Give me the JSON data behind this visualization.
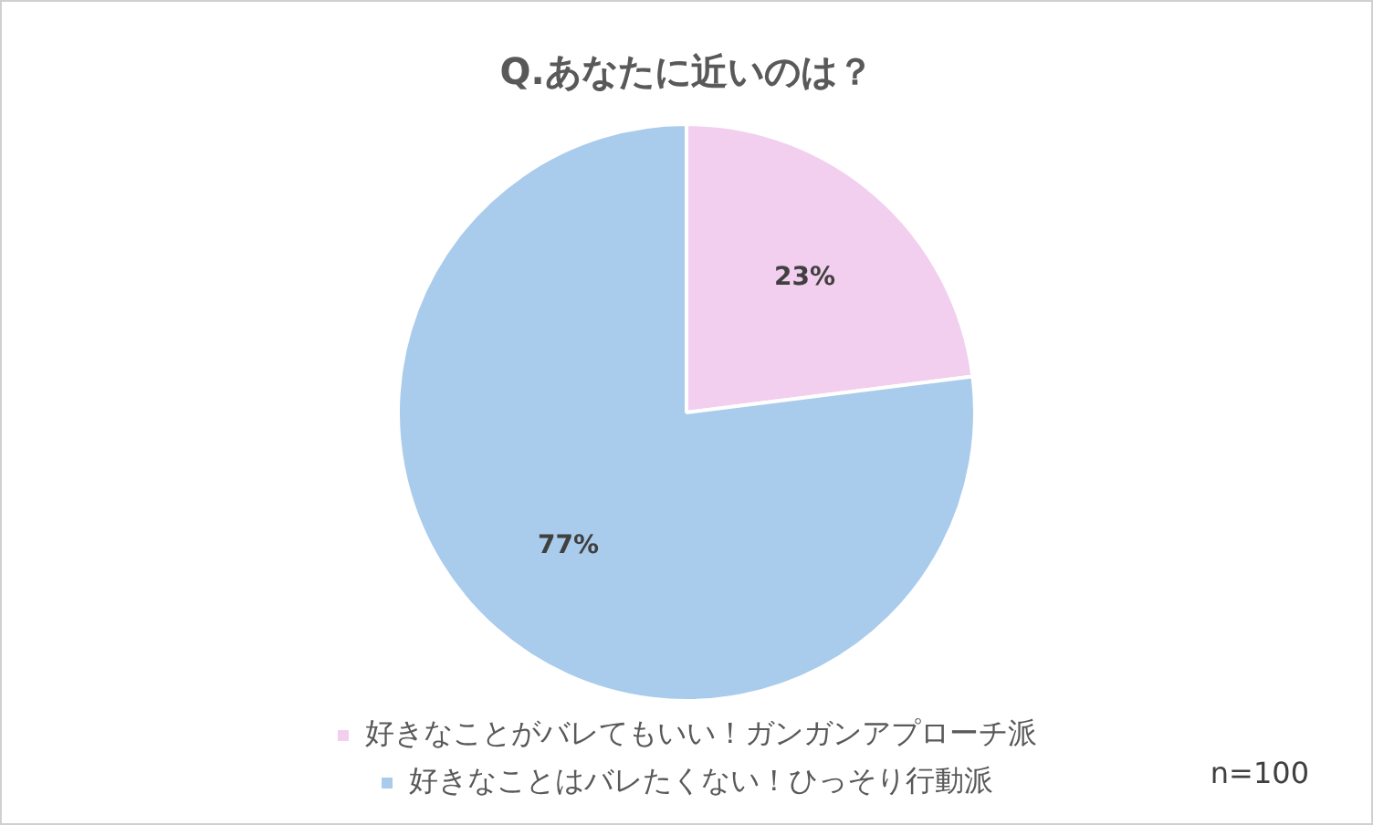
{
  "chart_data": {
    "type": "pie",
    "title": "Q.あなたに近いのは？",
    "categories": [
      "好きなことがバレてもいい！ガンガンアプローチ派",
      "好きなことはバレたくない！ひっそり行動派"
    ],
    "values": [
      23,
      77
    ],
    "colors": [
      "#f2cfee",
      "#a9cbec"
    ],
    "value_labels": [
      "23%",
      "77%"
    ],
    "legend": "bottom",
    "annotations": [
      "n=100"
    ]
  }
}
